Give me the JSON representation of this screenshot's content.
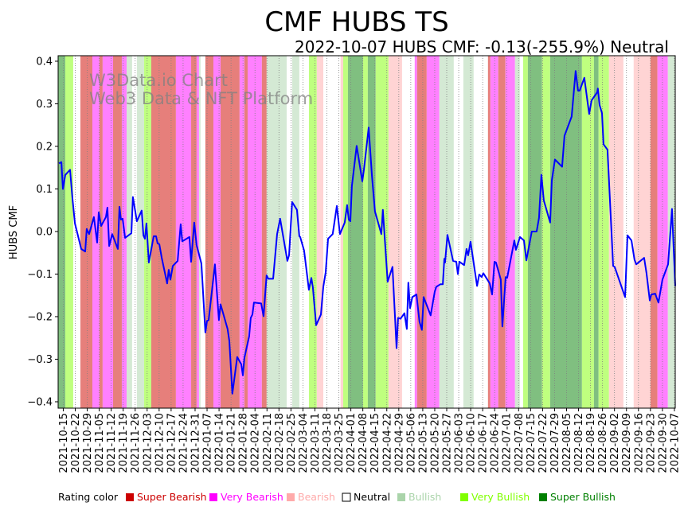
{
  "chart_data": {
    "type": "line",
    "title": "CMF HUBS TS",
    "subtitle": "2022-10-07 HUBS CMF: -0.13(-255.9%) Neutral",
    "ylabel": "HUBS CMF",
    "xlabel": "",
    "x_unit": "days since 2021-10-12",
    "xlim": [
      0,
      360.5
    ],
    "ylim": [
      -0.415,
      0.413
    ],
    "grid": "vertical dotted at weekly ticks",
    "watermark": [
      "W3Data.io Chart",
      "Web3 Data & NFT Platform"
    ],
    "y_ticks": [
      {
        "v": 0.4,
        "label": "0.4"
      },
      {
        "v": 0.3,
        "label": "0.3"
      },
      {
        "v": 0.2,
        "label": "0.2"
      },
      {
        "v": 0.1,
        "label": "0.1"
      },
      {
        "v": 0.0,
        "label": "0.0"
      },
      {
        "v": -0.1,
        "label": "−0.1"
      },
      {
        "v": -0.2,
        "label": "−0.2"
      },
      {
        "v": -0.3,
        "label": "−0.3"
      },
      {
        "v": -0.4,
        "label": "−0.4"
      }
    ],
    "x_tick_first_day": 3,
    "x_tick_step_days": 7,
    "x_tick_labels": [
      "2021-10-15",
      "2021-10-22",
      "2021-10-29",
      "2021-11-05",
      "2021-11-12",
      "2021-11-19",
      "2021-11-26",
      "2021-12-03",
      "2021-12-10",
      "2021-12-17",
      "2021-12-24",
      "2021-12-31",
      "2022-01-07",
      "2022-01-14",
      "2022-01-21",
      "2022-01-28",
      "2022-02-04",
      "2022-02-11",
      "2022-02-18",
      "2022-02-25",
      "2022-03-04",
      "2022-03-11",
      "2022-03-18",
      "2022-03-25",
      "2022-04-01",
      "2022-04-08",
      "2022-04-15",
      "2022-04-22",
      "2022-04-29",
      "2022-05-06",
      "2022-05-13",
      "2022-05-20",
      "2022-05-27",
      "2022-06-03",
      "2022-06-10",
      "2022-06-17",
      "2022-06-24",
      "2022-07-01",
      "2022-07-08",
      "2022-07-15",
      "2022-07-22",
      "2022-07-29",
      "2022-08-05",
      "2022-08-12",
      "2022-08-19",
      "2022-08-26",
      "2022-09-02",
      "2022-09-09",
      "2022-09-16",
      "2022-09-23",
      "2022-09-30",
      "2022-10-07"
    ],
    "series": [
      {
        "name": "HUBS CMF",
        "color": "#0000ff",
        "points": [
          [
            0.5,
            0.16
          ],
          [
            1.9,
            0.163
          ],
          [
            2.8,
            0.1
          ],
          [
            4.2,
            0.133
          ],
          [
            7.0,
            0.145
          ],
          [
            8.4,
            0.075
          ],
          [
            9.8,
            0.019
          ],
          [
            13.5,
            -0.041
          ],
          [
            15.8,
            -0.047
          ],
          [
            16.7,
            0.006
          ],
          [
            18.1,
            -0.006
          ],
          [
            20.9,
            0.034
          ],
          [
            22.8,
            -0.026
          ],
          [
            23.7,
            0.045
          ],
          [
            25.1,
            0.013
          ],
          [
            27.9,
            0.034
          ],
          [
            28.8,
            0.056
          ],
          [
            29.8,
            -0.034
          ],
          [
            31.6,
            -0.006
          ],
          [
            34.9,
            -0.041
          ],
          [
            35.8,
            0.058
          ],
          [
            36.7,
            0.028
          ],
          [
            37.7,
            0.03
          ],
          [
            39.1,
            -0.015
          ],
          [
            42.8,
            -0.004
          ],
          [
            43.7,
            0.081
          ],
          [
            46.0,
            0.024
          ],
          [
            48.8,
            0.049
          ],
          [
            49.8,
            -0.009
          ],
          [
            50.7,
            -0.017
          ],
          [
            51.6,
            0.019
          ],
          [
            53.0,
            -0.073
          ],
          [
            55.8,
            -0.011
          ],
          [
            57.2,
            -0.011
          ],
          [
            58.1,
            -0.028
          ],
          [
            59.1,
            -0.03
          ],
          [
            60.5,
            -0.062
          ],
          [
            63.7,
            -0.122
          ],
          [
            64.6,
            -0.09
          ],
          [
            65.6,
            -0.113
          ],
          [
            67.0,
            -0.081
          ],
          [
            69.8,
            -0.069
          ],
          [
            71.6,
            0.017
          ],
          [
            72.5,
            -0.023
          ],
          [
            76.7,
            -0.013
          ],
          [
            77.7,
            -0.071
          ],
          [
            79.5,
            0.021
          ],
          [
            80.9,
            -0.032
          ],
          [
            83.7,
            -0.075
          ],
          [
            86.0,
            -0.237
          ],
          [
            87.0,
            -0.21
          ],
          [
            87.9,
            -0.208
          ],
          [
            91.6,
            -0.077
          ],
          [
            93.9,
            -0.208
          ],
          [
            94.9,
            -0.171
          ],
          [
            99.0,
            -0.229
          ],
          [
            100.0,
            -0.257
          ],
          [
            101.8,
            -0.381
          ],
          [
            104.6,
            -0.295
          ],
          [
            107.0,
            -0.312
          ],
          [
            107.9,
            -0.338
          ],
          [
            108.8,
            -0.297
          ],
          [
            111.6,
            -0.246
          ],
          [
            112.5,
            -0.203
          ],
          [
            113.5,
            -0.195
          ],
          [
            114.4,
            -0.167
          ],
          [
            118.6,
            -0.169
          ],
          [
            120.0,
            -0.199
          ],
          [
            121.8,
            -0.103
          ],
          [
            122.8,
            -0.111
          ],
          [
            125.6,
            -0.111
          ],
          [
            127.9,
            -0.006
          ],
          [
            129.7,
            0.03
          ],
          [
            133.9,
            -0.069
          ],
          [
            134.9,
            -0.056
          ],
          [
            136.7,
            0.069
          ],
          [
            139.5,
            0.051
          ],
          [
            140.9,
            -0.011
          ],
          [
            141.4,
            -0.013
          ],
          [
            143.7,
            -0.045
          ],
          [
            146.5,
            -0.137
          ],
          [
            147.9,
            -0.109
          ],
          [
            148.8,
            -0.131
          ],
          [
            150.7,
            -0.22
          ],
          [
            153.5,
            -0.195
          ],
          [
            154.9,
            -0.13
          ],
          [
            156.3,
            -0.096
          ],
          [
            157.7,
            -0.017
          ],
          [
            160.4,
            -0.006
          ],
          [
            162.8,
            0.06
          ],
          [
            164.6,
            -0.006
          ],
          [
            167.4,
            0.021
          ],
          [
            168.8,
            0.062
          ],
          [
            169.8,
            0.028
          ],
          [
            170.7,
            0.024
          ],
          [
            171.6,
            0.107
          ],
          [
            174.4,
            0.201
          ],
          [
            177.7,
            0.118
          ],
          [
            178.6,
            0.145
          ],
          [
            181.4,
            0.244
          ],
          [
            183.3,
            0.131
          ],
          [
            185.1,
            0.047
          ],
          [
            188.8,
            -0.006
          ],
          [
            189.7,
            0.051
          ],
          [
            192.5,
            -0.118
          ],
          [
            195.3,
            -0.083
          ],
          [
            197.7,
            -0.274
          ],
          [
            198.6,
            -0.203
          ],
          [
            200.0,
            -0.205
          ],
          [
            202.3,
            -0.192
          ],
          [
            203.7,
            -0.229
          ],
          [
            204.6,
            -0.12
          ],
          [
            205.6,
            -0.18
          ],
          [
            206.9,
            -0.154
          ],
          [
            209.3,
            -0.148
          ],
          [
            211.1,
            -0.212
          ],
          [
            212.5,
            -0.231
          ],
          [
            213.5,
            -0.154
          ],
          [
            217.6,
            -0.197
          ],
          [
            220.0,
            -0.141
          ],
          [
            220.9,
            -0.13
          ],
          [
            223.3,
            -0.124
          ],
          [
            224.7,
            -0.124
          ],
          [
            225.6,
            -0.064
          ],
          [
            226.0,
            -0.073
          ],
          [
            227.4,
            -0.008
          ],
          [
            230.7,
            -0.069
          ],
          [
            232.6,
            -0.071
          ],
          [
            233.5,
            -0.1
          ],
          [
            234.4,
            -0.071
          ],
          [
            237.2,
            -0.079
          ],
          [
            238.6,
            -0.041
          ],
          [
            239.5,
            -0.056
          ],
          [
            240.9,
            -0.024
          ],
          [
            244.7,
            -0.128
          ],
          [
            246.0,
            -0.101
          ],
          [
            247.4,
            -0.107
          ],
          [
            248.4,
            -0.098
          ],
          [
            252.1,
            -0.122
          ],
          [
            253.5,
            -0.148
          ],
          [
            254.9,
            -0.071
          ],
          [
            255.8,
            -0.073
          ],
          [
            258.6,
            -0.113
          ],
          [
            259.5,
            -0.223
          ],
          [
            261.4,
            -0.107
          ],
          [
            262.3,
            -0.109
          ],
          [
            266.5,
            -0.021
          ],
          [
            267.4,
            -0.043
          ],
          [
            269.8,
            -0.013
          ],
          [
            272.1,
            -0.021
          ],
          [
            273.5,
            -0.068
          ],
          [
            276.7,
            0.0
          ],
          [
            279.5,
            0.0
          ],
          [
            280.9,
            0.032
          ],
          [
            282.3,
            0.133
          ],
          [
            283.7,
            0.073
          ],
          [
            287.4,
            0.021
          ],
          [
            288.4,
            0.12
          ],
          [
            290.2,
            0.169
          ],
          [
            294.4,
            0.152
          ],
          [
            295.8,
            0.225
          ],
          [
            300.0,
            0.27
          ],
          [
            302.3,
            0.377
          ],
          [
            303.7,
            0.331
          ],
          [
            304.7,
            0.331
          ],
          [
            307.4,
            0.361
          ],
          [
            310.2,
            0.276
          ],
          [
            311.6,
            0.308
          ],
          [
            314.9,
            0.327
          ],
          [
            315.3,
            0.336
          ],
          [
            316.3,
            0.297
          ],
          [
            317.7,
            0.278
          ],
          [
            318.6,
            0.205
          ],
          [
            320.9,
            0.192
          ],
          [
            324.2,
            -0.081
          ],
          [
            325.1,
            -0.083
          ],
          [
            331.2,
            -0.154
          ],
          [
            332.6,
            -0.009
          ],
          [
            334.9,
            -0.021
          ],
          [
            336.7,
            -0.066
          ],
          [
            337.7,
            -0.077
          ],
          [
            342.3,
            -0.062
          ],
          [
            343.7,
            -0.098
          ],
          [
            345.6,
            -0.162
          ],
          [
            346.5,
            -0.148
          ],
          [
            348.8,
            -0.146
          ],
          [
            350.7,
            -0.167
          ],
          [
            353.0,
            -0.113
          ],
          [
            356.3,
            -0.077
          ],
          [
            358.6,
            0.053
          ],
          [
            360.5,
            -0.128
          ]
        ]
      }
    ],
    "rating_bands": [
      [
        0,
        4.2,
        "super_bullish"
      ],
      [
        4.2,
        8.8,
        "very_bullish"
      ],
      [
        13,
        20,
        "super_bearish"
      ],
      [
        20,
        24.2,
        "very_bearish"
      ],
      [
        24.2,
        26,
        "super_bearish"
      ],
      [
        26,
        32.1,
        "very_bearish"
      ],
      [
        32.1,
        37.2,
        "super_bearish"
      ],
      [
        37.2,
        40,
        "very_bearish"
      ],
      [
        40,
        43.2,
        "bullish"
      ],
      [
        46,
        50.2,
        "bullish"
      ],
      [
        50.2,
        54.4,
        "very_bullish"
      ],
      [
        54.4,
        68.8,
        "super_bearish"
      ],
      [
        68.8,
        77.7,
        "very_bearish"
      ],
      [
        77.7,
        80.9,
        "super_bearish"
      ],
      [
        80.9,
        82.3,
        "very_bearish"
      ],
      [
        82.3,
        83.2,
        "bullish"
      ],
      [
        86,
        90.7,
        "super_bearish"
      ],
      [
        90.7,
        94.9,
        "very_bearish"
      ],
      [
        94.9,
        106,
        "super_bearish"
      ],
      [
        106,
        108.8,
        "very_bearish"
      ],
      [
        108.8,
        110.7,
        "super_bearish"
      ],
      [
        110.7,
        119,
        "very_bearish"
      ],
      [
        119,
        121.8,
        "super_bearish"
      ],
      [
        121.8,
        133.5,
        "bullish"
      ],
      [
        136.7,
        140.9,
        "bullish"
      ],
      [
        146.5,
        151.1,
        "very_bullish"
      ],
      [
        151.1,
        154.9,
        "bearish"
      ],
      [
        165,
        166.5,
        "bearish"
      ],
      [
        166.5,
        169.3,
        "very_bullish"
      ],
      [
        169.3,
        178.1,
        "super_bullish"
      ],
      [
        178.1,
        180.9,
        "very_bullish"
      ],
      [
        180.9,
        185.5,
        "super_bullish"
      ],
      [
        185.5,
        193,
        "very_bullish"
      ],
      [
        193,
        200.9,
        "bearish"
      ],
      [
        208.3,
        209.7,
        "very_bearish"
      ],
      [
        209.7,
        215.3,
        "super_bearish"
      ],
      [
        215.3,
        222.7,
        "very_bearish"
      ],
      [
        222.7,
        231.1,
        "bullish"
      ],
      [
        236.7,
        242.7,
        "bullish"
      ],
      [
        251.1,
        252.5,
        "super_bearish"
      ],
      [
        252.5,
        257.1,
        "very_bearish"
      ],
      [
        257.1,
        261.3,
        "super_bearish"
      ],
      [
        261.3,
        266.9,
        "very_bearish"
      ],
      [
        266.9,
        269.7,
        "bullish"
      ],
      [
        271.6,
        274.4,
        "very_bullish"
      ],
      [
        274.4,
        282.7,
        "super_bullish"
      ],
      [
        282.7,
        287.4,
        "very_bullish"
      ],
      [
        287.4,
        306,
        "super_bullish"
      ],
      [
        306,
        313,
        "very_bullish"
      ],
      [
        313,
        315.7,
        "super_bullish"
      ],
      [
        315.7,
        321.8,
        "very_bullish"
      ],
      [
        321.8,
        330.2,
        "bearish"
      ],
      [
        336.2,
        346,
        "bearish"
      ],
      [
        346,
        350.1,
        "super_bearish"
      ],
      [
        350.1,
        356.2,
        "very_bearish"
      ],
      [
        356.2,
        360.5,
        "bullish"
      ]
    ],
    "band_colors": {
      "super_bearish": "#e67f7b",
      "very_bearish": "#ff80ff",
      "bearish": "#ffd4d4",
      "neutral": "#ffffff",
      "bullish": "#d4e9d4",
      "very_bullish": "#bfff7f",
      "super_bullish": "#80bf80"
    },
    "legend": {
      "title": "Rating color",
      "placement": "bottom",
      "items": [
        {
          "label": "Super Bearish",
          "color": "#cc0000"
        },
        {
          "label": "Very Bearish",
          "color": "#ff00ff"
        },
        {
          "label": "Bearish",
          "color": "#ffaaaa"
        },
        {
          "label": "Neutral",
          "color": "#ffffff"
        },
        {
          "label": "Bullish",
          "color": "#aad4aa"
        },
        {
          "label": "Very Bullish",
          "color": "#80ff00"
        },
        {
          "label": "Super Bullish",
          "color": "#008000"
        }
      ]
    }
  }
}
